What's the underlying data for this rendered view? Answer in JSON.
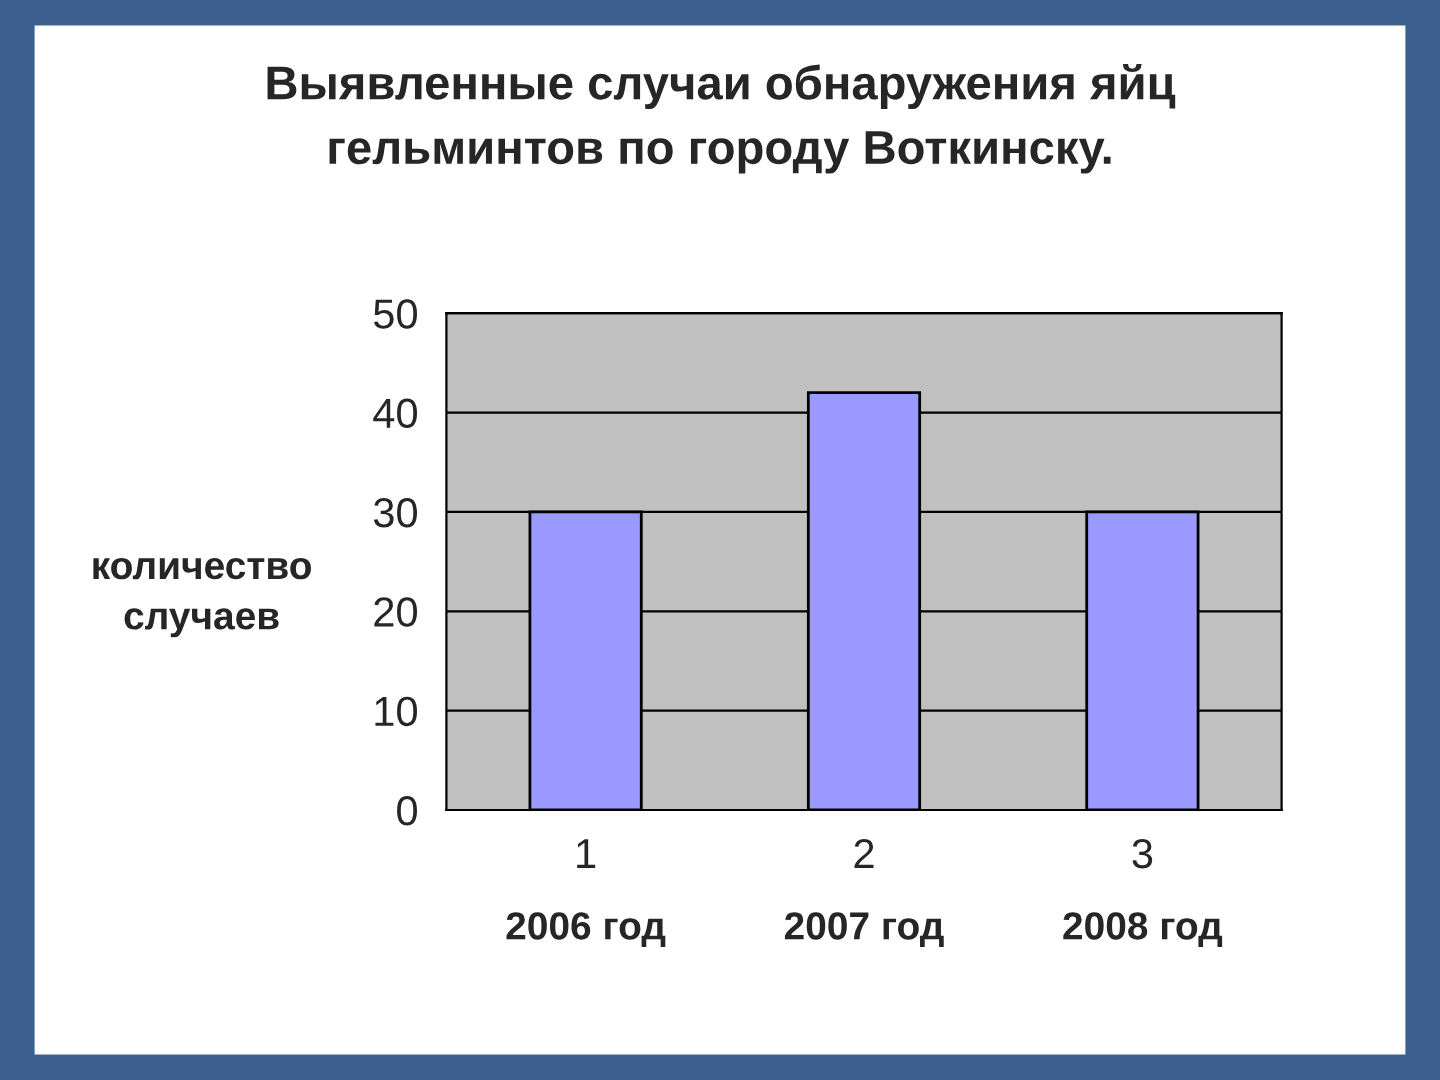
{
  "chart_data": {
    "type": "bar",
    "title": "Выявленные случаи обнаружения яйц\nгельминтов по городу Воткинску.",
    "ylabel": "количество\nслучаев",
    "categories": [
      "1",
      "2",
      "3"
    ],
    "series": [
      {
        "color": "#9999ff",
        "values": [
          30,
          42,
          30
        ]
      }
    ],
    "annotations": [
      "2006 год",
      "2007 год",
      "2008 год"
    ],
    "ylim": [
      0,
      50
    ],
    "yticks": [
      0,
      10,
      20,
      30,
      40,
      50
    ],
    "grid": "y",
    "legend": false
  }
}
